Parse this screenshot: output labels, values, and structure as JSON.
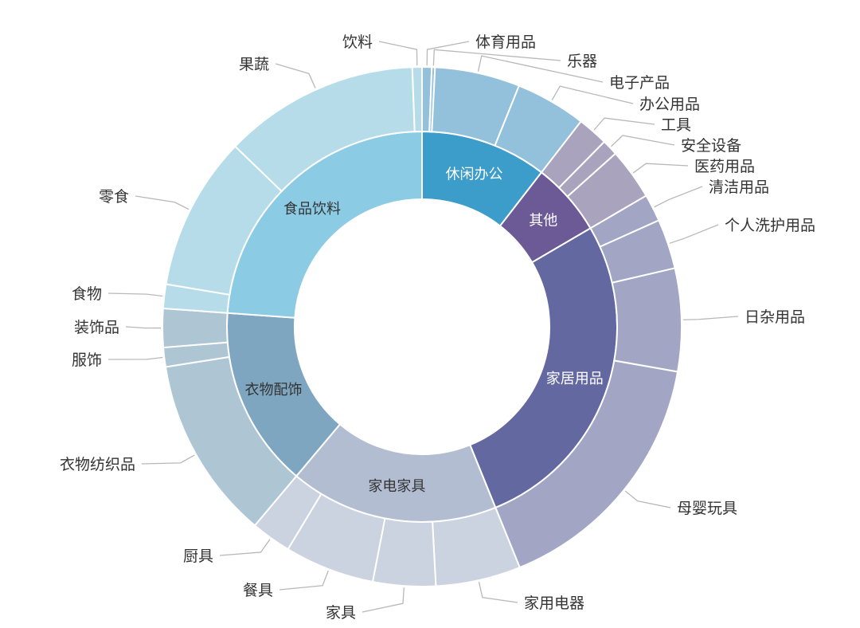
{
  "chart_data": {
    "type": "sunburst",
    "unit": "percent share (estimated)",
    "categories": [
      {
        "name": "休闲办公",
        "color": "#3c9dca",
        "child_color": "#93c0da",
        "label_color": "#ffffff",
        "children": [
          {
            "name": "体育用品",
            "value": 0.6
          },
          {
            "name": "乐器",
            "value": 0.2
          },
          {
            "name": "电子产品",
            "value": 5.3
          },
          {
            "name": "办公用品",
            "value": 4.4
          }
        ]
      },
      {
        "name": "其他",
        "color": "#6b5a96",
        "child_color": "#a9a3bd",
        "label_color": "#ffffff",
        "children": [
          {
            "name": "工具",
            "value": 1.9
          },
          {
            "name": "安全设备",
            "value": 1.0
          },
          {
            "name": "医药用品",
            "value": 3.2
          }
        ]
      },
      {
        "name": "家居用品",
        "color": "#6468a0",
        "child_color": "#a2a6c4",
        "label_color": "#ffffff",
        "children": [
          {
            "name": "清洁用品",
            "value": 1.7
          },
          {
            "name": "个人洗护用品",
            "value": 3.1
          },
          {
            "name": "日杂用品",
            "value": 6.4
          },
          {
            "name": "母婴玩具",
            "value": 16.1
          }
        ]
      },
      {
        "name": "家电家具",
        "color": "#b3bdd1",
        "child_color": "#cbd2e0",
        "label_color": "#333333",
        "children": [
          {
            "name": "家用电器",
            "value": 5.3
          },
          {
            "name": "家具",
            "value": 3.9
          },
          {
            "name": "餐具",
            "value": 5.6
          },
          {
            "name": "厨具",
            "value": 2.5
          }
        ]
      },
      {
        "name": "衣物配饰",
        "color": "#7fa6c0",
        "child_color": "#aec5d4",
        "label_color": "#333333",
        "children": [
          {
            "name": "衣物纺织品",
            "value": 11.4
          },
          {
            "name": "服饰",
            "value": 1.2
          },
          {
            "name": "装饰品",
            "value": 2.4
          }
        ]
      },
      {
        "name": "食品饮料",
        "color": "#8ccbe4",
        "child_color": "#b6dcea",
        "label_color": "#333333",
        "children": [
          {
            "name": "食物",
            "value": 1.5
          },
          {
            "name": "零食",
            "value": 9.6
          },
          {
            "name": "果蔬",
            "value": 12.2
          },
          {
            "name": "饮料",
            "value": 0.6
          }
        ]
      }
    ],
    "legend": "none",
    "start": "12 o'clock, clockwise"
  }
}
